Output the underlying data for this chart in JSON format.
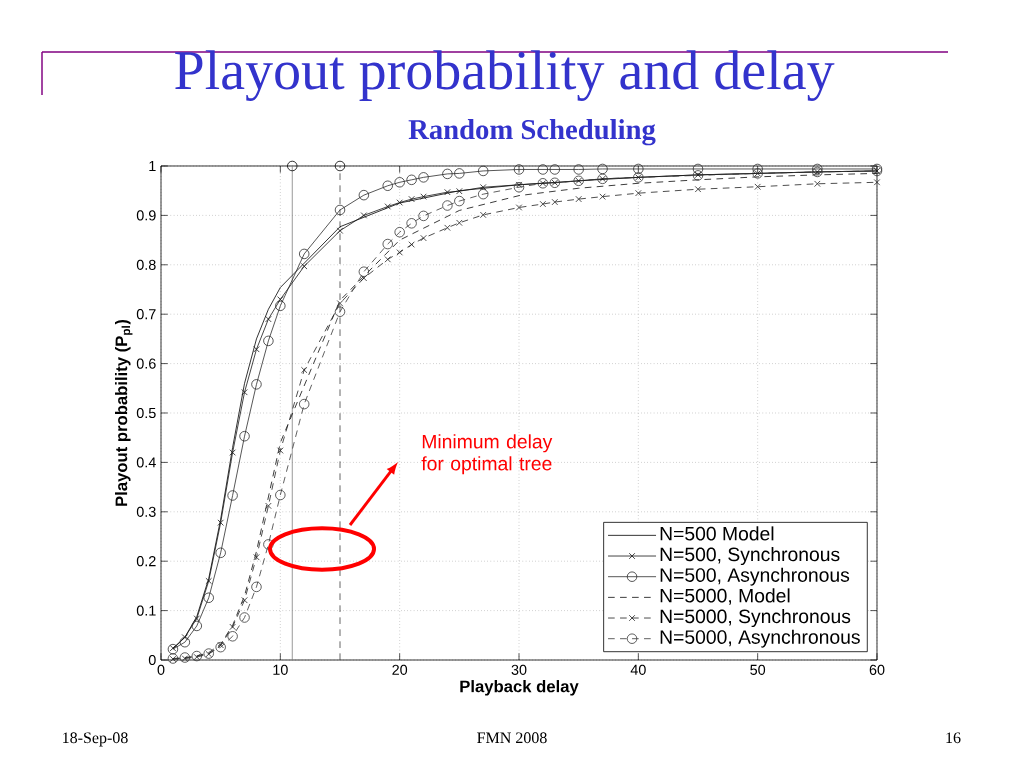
{
  "chart_data": {
    "type": "line",
    "title": "Playout probability and delay",
    "subtitle": "Random Scheduling",
    "xlabel": "Playback delay",
    "ylabel": "Playout probability (P$_{pl}$)",
    "xlim": [
      0,
      60
    ],
    "ylim": [
      0,
      1
    ],
    "xticks": [
      0,
      10,
      20,
      30,
      40,
      50,
      60
    ],
    "yticks": [
      0,
      0.1,
      0.2,
      0.3,
      0.4,
      0.5,
      0.6,
      0.7,
      0.8,
      0.9,
      1
    ],
    "grid": true,
    "legend": "bottom right",
    "series": [
      {
        "name": "N=500 Model",
        "color": "#000000",
        "marker": "none",
        "line_style": "solid",
        "x": [
          1,
          2,
          3,
          4,
          5,
          6,
          7,
          8,
          9,
          10,
          15,
          20,
          25,
          30,
          35,
          40,
          45,
          50,
          55,
          60
        ],
        "values": [
          0.022,
          0.046,
          0.088,
          0.165,
          0.285,
          0.43,
          0.56,
          0.65,
          0.71,
          0.754,
          0.877,
          0.925,
          0.95,
          0.962,
          0.97,
          0.977,
          0.982,
          0.985,
          0.988,
          0.99
        ]
      },
      {
        "name": "N=500, Synchronous",
        "color": "#161616",
        "marker": "cross",
        "line_style": "solid",
        "x": [
          1,
          2,
          3,
          4,
          5,
          6,
          7,
          8,
          9,
          10,
          12,
          15,
          17,
          19,
          20,
          21,
          22,
          24,
          25,
          27,
          30,
          32,
          33,
          35,
          37,
          40,
          45,
          50,
          55,
          60
        ],
        "values": [
          0.024,
          0.046,
          0.084,
          0.16,
          0.278,
          0.42,
          0.542,
          0.629,
          0.69,
          0.73,
          0.797,
          0.869,
          0.9,
          0.918,
          0.926,
          0.933,
          0.938,
          0.947,
          0.949,
          0.957,
          0.962,
          0.965,
          0.966,
          0.97,
          0.974,
          0.977,
          0.982,
          0.985,
          0.988,
          0.99
        ]
      },
      {
        "name": "N=500, Asynchronous",
        "color": "#2c2c2c",
        "marker": "circle",
        "line_style": "solid",
        "x": [
          1,
          2,
          3,
          4,
          5,
          6,
          7,
          8,
          9,
          10,
          12,
          15,
          17,
          19,
          20,
          21,
          22,
          24,
          25,
          27,
          30,
          32,
          33,
          35,
          37,
          40,
          45,
          50,
          55,
          60
        ],
        "values": [
          0.022,
          0.036,
          0.069,
          0.126,
          0.217,
          0.333,
          0.453,
          0.558,
          0.646,
          0.717,
          0.822,
          0.911,
          0.941,
          0.96,
          0.967,
          0.972,
          0.977,
          0.984,
          0.985,
          0.99,
          0.993,
          0.993,
          0.993,
          0.993,
          0.994,
          0.994,
          0.994,
          0.994,
          0.994,
          0.994
        ]
      },
      {
        "name": "N=5000, Model",
        "color": "#0b0b0b",
        "marker": "none",
        "line_style": "dashed",
        "x": [
          1,
          2,
          3,
          4,
          5,
          6,
          7,
          8,
          9,
          10,
          15,
          20,
          25,
          30,
          35,
          40,
          45,
          50,
          55,
          60
        ],
        "values": [
          0.002,
          0.004,
          0.008,
          0.015,
          0.032,
          0.07,
          0.13,
          0.22,
          0.33,
          0.44,
          0.728,
          0.85,
          0.91,
          0.94,
          0.955,
          0.965,
          0.972,
          0.978,
          0.982,
          0.985
        ]
      },
      {
        "name": "N=5000, Synchronous",
        "color": "#212121",
        "marker": "cross",
        "line_style": "dashed",
        "x": [
          1,
          2,
          3,
          4,
          5,
          6,
          7,
          8,
          9,
          10,
          12,
          15,
          17,
          19,
          20,
          21,
          22,
          24,
          25,
          27,
          30,
          32,
          33,
          35,
          37,
          40,
          45,
          50,
          55,
          60
        ],
        "values": [
          0.002,
          0.003,
          0.006,
          0.012,
          0.03,
          0.067,
          0.121,
          0.208,
          0.312,
          0.424,
          0.587,
          0.722,
          0.773,
          0.811,
          0.825,
          0.841,
          0.854,
          0.875,
          0.885,
          0.901,
          0.916,
          0.923,
          0.927,
          0.933,
          0.938,
          0.945,
          0.953,
          0.958,
          0.964,
          0.967
        ]
      },
      {
        "name": "N=5000, Asynchronous",
        "color": "#373737",
        "marker": "circle",
        "line_style": "dashed",
        "x": [
          1,
          2,
          3,
          4,
          5,
          6,
          7,
          8,
          9,
          10,
          12,
          15,
          17,
          19,
          20,
          21,
          22,
          24,
          25,
          27,
          30,
          32,
          33,
          35,
          37,
          40,
          45,
          50,
          55,
          60
        ],
        "values": [
          0.003,
          0.005,
          0.008,
          0.013,
          0.026,
          0.048,
          0.086,
          0.148,
          0.234,
          0.334,
          0.518,
          0.705,
          0.786,
          0.842,
          0.866,
          0.884,
          0.899,
          0.92,
          0.929,
          0.943,
          0.957,
          0.965,
          0.966,
          0.97,
          0.974,
          0.977,
          0.981,
          0.985,
          0.988,
          0.99
        ]
      },
      {
        "type": "scatter",
        "color": "#000000",
        "marker": "circle",
        "x": [
          11,
          15
        ],
        "values": [
          1,
          1
        ]
      }
    ],
    "ref_lines": [
      {
        "axis": "x",
        "value": 11,
        "color": "#808080",
        "line_style": "solid"
      },
      {
        "axis": "x",
        "value": 15,
        "color": "#404040",
        "line_style": "dashed"
      }
    ],
    "annotations": [
      "Minimum delay for optimal tree",
      "18-Sep-08",
      "FMN 2008",
      "16"
    ]
  }
}
